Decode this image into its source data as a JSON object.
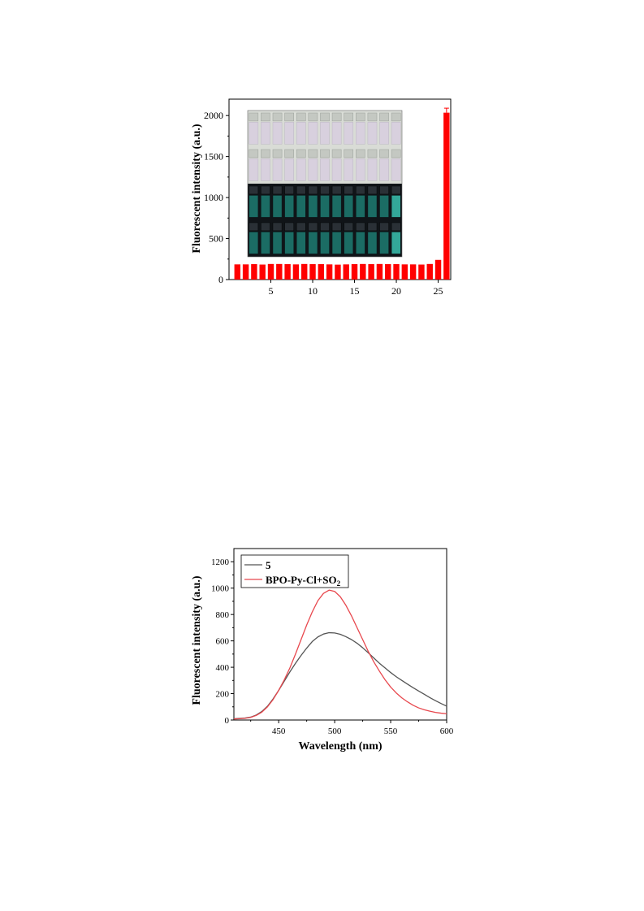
{
  "chart_data": [
    {
      "type": "bar",
      "title": "",
      "xlabel": "",
      "ylabel": "Fluorescent intensity (a.u.)",
      "ylim": [
        0,
        2200
      ],
      "xlim": [
        0,
        26.5
      ],
      "yticks": [
        0,
        500,
        1000,
        1500,
        2000
      ],
      "xticks": [
        5,
        10,
        15,
        20,
        25
      ],
      "grid": false,
      "bar_color": "#ff0000",
      "categories": [
        1,
        2,
        3,
        4,
        5,
        6,
        7,
        8,
        9,
        10,
        11,
        12,
        13,
        14,
        15,
        16,
        17,
        18,
        19,
        20,
        21,
        22,
        23,
        24,
        25,
        26
      ],
      "values": [
        185,
        185,
        188,
        183,
        190,
        190,
        188,
        185,
        190,
        188,
        188,
        185,
        182,
        185,
        188,
        190,
        188,
        190,
        188,
        188,
        185,
        185,
        183,
        190,
        240,
        2035
      ],
      "error": [
        0,
        0,
        0,
        0,
        0,
        0,
        0,
        0,
        0,
        0,
        0,
        0,
        0,
        0,
        0,
        0,
        0,
        0,
        0,
        0,
        0,
        0,
        0,
        0,
        0,
        55
      ],
      "inset": {
        "description_free": true,
        "rows": [
          {
            "background": "#d9dcd6",
            "solution": "#d8cfe0",
            "caps": "#c4c8c2",
            "count": 13
          },
          {
            "background": "#d9dcd6",
            "solution": "#d8cfe0",
            "caps": "#c4c8c2",
            "count": 13
          },
          {
            "background": "#101418",
            "solution": "#1f8a7e",
            "caps": "#2a3036",
            "count": 13
          },
          {
            "background": "#101418",
            "solution": "#1f8a7e",
            "caps": "#2a3036",
            "count": 13
          }
        ]
      }
    },
    {
      "type": "line",
      "title": "",
      "xlabel": "Wavelength (nm)",
      "ylabel": "Fluorescent intensity (a.u.)",
      "xlim": [
        410,
        600
      ],
      "ylim": [
        0,
        1300
      ],
      "xticks": [
        450,
        500,
        550,
        600
      ],
      "yticks": [
        0,
        200,
        400,
        600,
        800,
        1000,
        1200
      ],
      "grid": false,
      "legend": {
        "placement": "top-left",
        "entries": [
          {
            "name": "5",
            "color": "#555555"
          },
          {
            "name": "BPO-Py-Cl+SO",
            "sub": "2",
            "color": "#e8484e"
          }
        ]
      },
      "series": [
        {
          "name": "5",
          "color": "#555555",
          "x": [
            410,
            415,
            420,
            425,
            430,
            435,
            440,
            445,
            450,
            455,
            460,
            465,
            470,
            475,
            480,
            485,
            490,
            495,
            500,
            505,
            510,
            515,
            520,
            525,
            530,
            535,
            540,
            545,
            550,
            555,
            560,
            565,
            570,
            575,
            580,
            585,
            590,
            595,
            600
          ],
          "y": [
            10,
            12,
            15,
            22,
            38,
            65,
            105,
            160,
            225,
            295,
            365,
            430,
            490,
            545,
            595,
            630,
            652,
            662,
            660,
            650,
            632,
            610,
            582,
            548,
            510,
            470,
            430,
            395,
            360,
            328,
            300,
            272,
            245,
            220,
            195,
            170,
            147,
            125,
            105
          ]
        },
        {
          "name": "BPO-Py-Cl+SO2",
          "color": "#e8484e",
          "x": [
            410,
            415,
            420,
            425,
            430,
            435,
            440,
            445,
            450,
            455,
            460,
            465,
            470,
            475,
            480,
            485,
            490,
            495,
            500,
            505,
            510,
            515,
            520,
            525,
            530,
            535,
            540,
            545,
            550,
            555,
            560,
            565,
            570,
            575,
            580,
            585,
            590,
            595,
            600
          ],
          "y": [
            8,
            10,
            13,
            20,
            35,
            60,
            100,
            155,
            225,
            305,
            395,
            500,
            610,
            720,
            820,
            905,
            960,
            985,
            975,
            935,
            870,
            790,
            700,
            610,
            520,
            440,
            370,
            305,
            250,
            205,
            168,
            138,
            112,
            92,
            78,
            67,
            58,
            52,
            48
          ]
        }
      ]
    }
  ]
}
